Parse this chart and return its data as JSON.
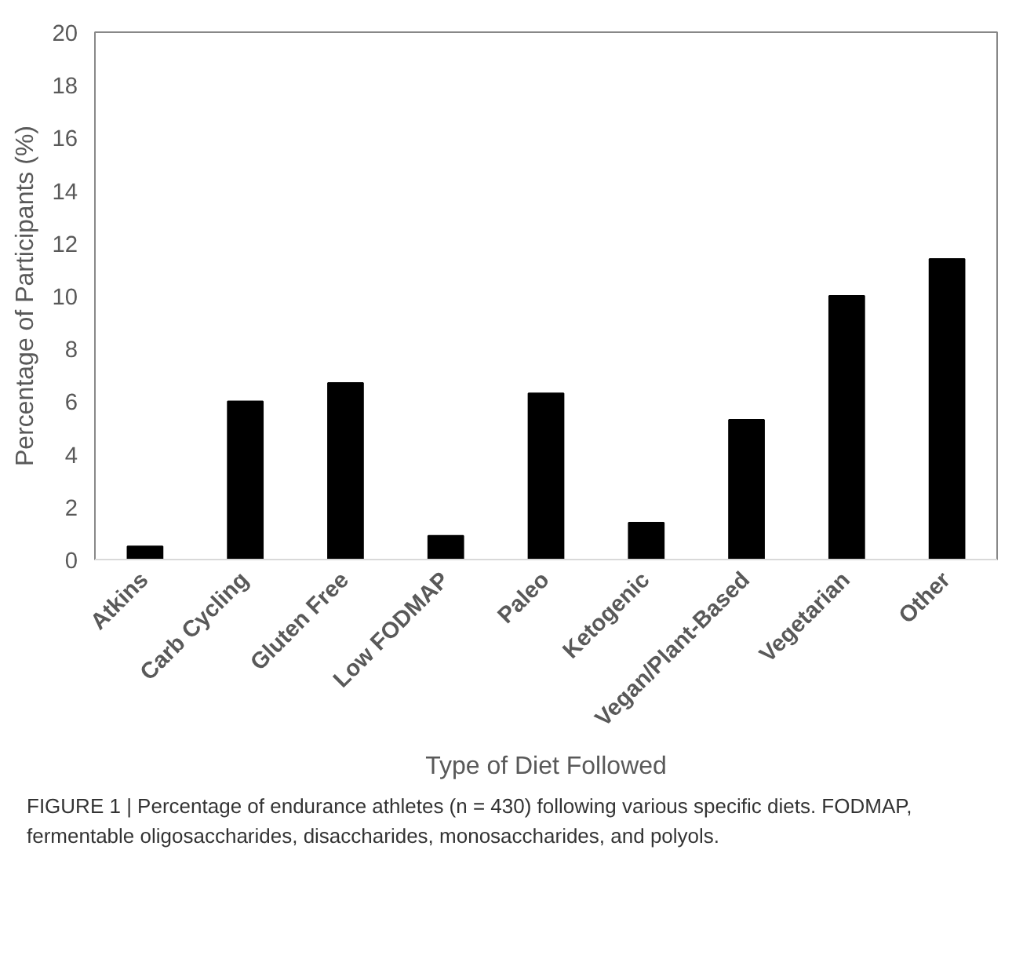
{
  "chart_data": {
    "type": "bar",
    "xlabel": "Type of Diet Followed",
    "ylabel": "Percentage of Participants (%)",
    "categories": [
      "Atkins",
      "Carb Cycling",
      "Gluten Free",
      "Low FODMAP",
      "Paleo",
      "Ketogenic",
      "Vegan/Plant-Based",
      "Vegetarian",
      "Other"
    ],
    "values": [
      0.5,
      6.0,
      6.7,
      0.9,
      6.3,
      1.4,
      5.3,
      10.0,
      11.4
    ],
    "color": "#000000",
    "ylim": [
      0,
      20
    ],
    "yticks": [
      0,
      2,
      4,
      6,
      8,
      10,
      12,
      14,
      16,
      18,
      20
    ],
    "grid": false,
    "annotations": [
      "FIGURE 1 | Percentage of endurance athletes (n = 430) following various specific diets. FODMAP, fermentable oligosaccharides, disaccharides, monosaccharides, and polyols."
    ]
  }
}
